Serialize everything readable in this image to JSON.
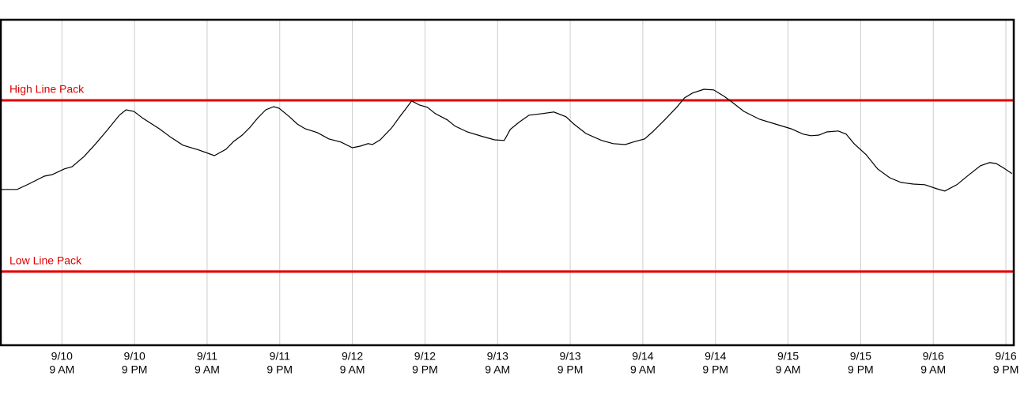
{
  "chart_data": {
    "type": "line",
    "x": [
      -10.0,
      -7.4,
      -5.5,
      -2.9,
      -1.6,
      0.4,
      1.7,
      3.7,
      5.6,
      7.6,
      9.5,
      10.6,
      11.9,
      13.4,
      16.1,
      18.0,
      20.0,
      22.6,
      25.2,
      27.1,
      28.4,
      29.8,
      31.1,
      32.4,
      33.7,
      35.0,
      35.9,
      37.6,
      38.9,
      40.2,
      42.2,
      44.1,
      46.1,
      48.0,
      49.3,
      50.6,
      51.3,
      52.6,
      54.5,
      55.9,
      56.9,
      57.8,
      59.1,
      60.4,
      61.7,
      63.7,
      65.0,
      67.0,
      69.6,
      71.5,
      73.1,
      74.1,
      75.5,
      77.2,
      79.4,
      81.3,
      83.3,
      84.6,
      86.6,
      89.2,
      91.1,
      93.1,
      94.4,
      96.3,
      97.6,
      99.6,
      101.6,
      102.9,
      104.2,
      106.1,
      107.7,
      109.4,
      110.7,
      112.7,
      115.3,
      117.9,
      120.5,
      122.5,
      123.8,
      125.1,
      126.4,
      128.3,
      129.6,
      130.9,
      132.9,
      134.8,
      136.8,
      138.7,
      140.7,
      142.6,
      144.6,
      145.9,
      147.9,
      149.8,
      151.8,
      153.3,
      154.4,
      155.7,
      157.0
    ],
    "series": [
      {
        "color": "#000000",
        "values": [
          49.3,
          49.3,
          51.0,
          53.5,
          54.0,
          55.8,
          56.5,
          59.8,
          63.8,
          68.3,
          72.8,
          74.5,
          74.0,
          71.8,
          68.5,
          65.8,
          63.3,
          61.8,
          60.0,
          62.0,
          64.5,
          66.5,
          69.0,
          72.0,
          74.5,
          75.5,
          75.0,
          72.3,
          70.0,
          68.5,
          67.3,
          65.3,
          64.3,
          62.5,
          63.0,
          63.8,
          63.5,
          65.0,
          68.8,
          72.5,
          75.0,
          77.3,
          76.0,
          75.3,
          73.3,
          71.3,
          69.3,
          67.5,
          66.0,
          65.0,
          64.8,
          68.3,
          70.5,
          72.8,
          73.3,
          73.8,
          72.3,
          70.0,
          67.0,
          64.8,
          63.8,
          63.5,
          64.3,
          65.3,
          67.5,
          71.3,
          75.3,
          78.3,
          79.8,
          81.0,
          80.8,
          78.8,
          77.0,
          74.0,
          71.5,
          70.0,
          68.5,
          66.8,
          66.3,
          66.5,
          67.5,
          67.8,
          66.8,
          63.8,
          60.3,
          55.8,
          53.0,
          51.5,
          51.0,
          50.8,
          49.5,
          48.8,
          50.8,
          53.8,
          56.8,
          57.8,
          57.5,
          56.0,
          54.3
        ]
      }
    ],
    "references": [
      {
        "label": "High Line Pack",
        "value": 77.5,
        "color": "#e00000"
      },
      {
        "label": "Low Line Pack",
        "value": 23.3,
        "color": "#e00000"
      }
    ],
    "xlim": [
      -10.1,
      157.3
    ],
    "ylim": [
      0,
      103
    ],
    "xticks": [
      {
        "value": 0,
        "label": [
          "9/10",
          "9 AM"
        ]
      },
      {
        "value": 12,
        "label": [
          "9/10",
          "9 PM"
        ]
      },
      {
        "value": 24,
        "label": [
          "9/11",
          "9 AM"
        ]
      },
      {
        "value": 36,
        "label": [
          "9/11",
          "9 PM"
        ]
      },
      {
        "value": 48,
        "label": [
          "9/12",
          "9 AM"
        ]
      },
      {
        "value": 60,
        "label": [
          "9/12",
          "9 PM"
        ]
      },
      {
        "value": 72,
        "label": [
          "9/13",
          "9 AM"
        ]
      },
      {
        "value": 84,
        "label": [
          "9/13",
          "9 PM"
        ]
      },
      {
        "value": 96,
        "label": [
          "9/14",
          "9 AM"
        ]
      },
      {
        "value": 108,
        "label": [
          "9/14",
          "9 PM"
        ]
      },
      {
        "value": 120,
        "label": [
          "9/15",
          "9 AM"
        ]
      },
      {
        "value": 132,
        "label": [
          "9/15",
          "9 PM"
        ]
      },
      {
        "value": 144,
        "label": [
          "9/16",
          "9 AM"
        ]
      },
      {
        "value": 156,
        "label": [
          "9/16",
          "9 PM"
        ]
      }
    ],
    "grid": true
  }
}
